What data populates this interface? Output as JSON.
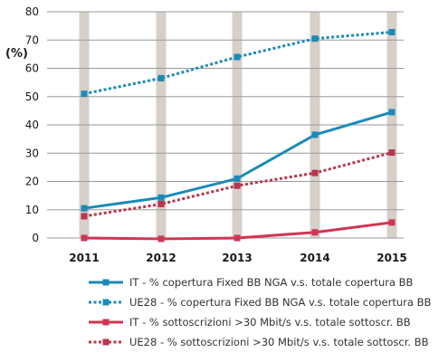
{
  "chart_data": {
    "type": "line",
    "ylabel": "(%)",
    "ylim": [
      0,
      80
    ],
    "yticks": [
      0,
      10,
      20,
      30,
      40,
      50,
      60,
      70,
      80
    ],
    "categories": [
      "2011",
      "2012",
      "2013",
      "2014",
      "2015"
    ],
    "grid": "horizontal",
    "legend": "bottom",
    "series": [
      {
        "name": "IT - % copertura Fixed BB NGA v.s. totale copertura BB",
        "values": [
          10.5,
          14.3,
          21,
          36.5,
          44.5
        ],
        "color": "#1b8ab8",
        "style": "solid"
      },
      {
        "name": "UE28 - % copertura Fixed BB NGA v.s. totale copertura BB",
        "values": [
          51,
          56.5,
          64,
          70.5,
          72.8
        ],
        "color": "#1b8ab8",
        "style": "dotted"
      },
      {
        "name": "IT - % sottoscrizioni >30 Mbit/s v.s. totale sottoscr. BB",
        "values": [
          0,
          -0.3,
          0,
          2,
          5.5
        ],
        "color": "#d13452",
        "style": "solid"
      },
      {
        "name": "UE28 - % sottoscrizioni >30 Mbit/s v.s. totale sottoscr. BB",
        "values": [
          7.7,
          12,
          18.5,
          23,
          30.2
        ],
        "color": "#b8354b",
        "style": "dotted"
      }
    ],
    "category_band_color": "#d6d0c8"
  }
}
